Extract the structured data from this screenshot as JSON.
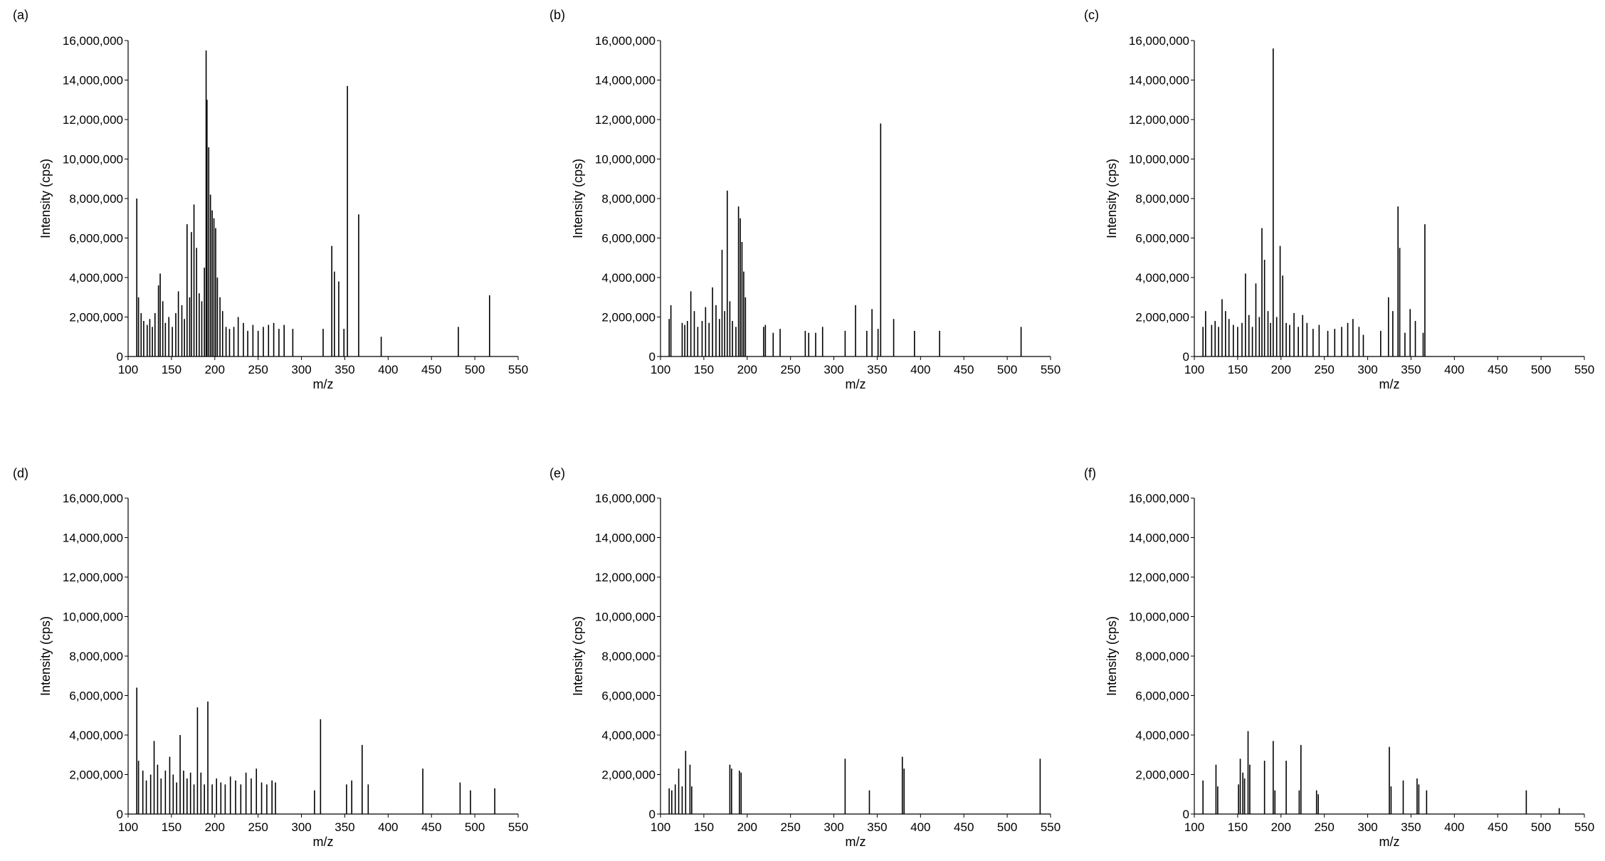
{
  "figure": {
    "panel_labels": [
      "(a)",
      "(b)",
      "(c)",
      "(d)",
      "(e)",
      "(f)"
    ]
  },
  "colors": {
    "stroke": "#000000",
    "background": "#ffffff"
  },
  "chart_data": [
    {
      "panel": "(a)",
      "type": "bar",
      "xlabel": "m/z",
      "ylabel": "Intensity (cps)",
      "xlim": [
        100,
        550
      ],
      "ylim": [
        0,
        16000000
      ],
      "xticks": [
        100,
        150,
        200,
        250,
        300,
        350,
        400,
        450,
        500,
        550
      ],
      "yticks": [
        0,
        2000000,
        4000000,
        6000000,
        8000000,
        10000000,
        12000000,
        14000000,
        16000000
      ],
      "ytick_labels": [
        "0",
        "2,000,000",
        "4,000,000",
        "6,000,000",
        "8,000,000",
        "10,000,000",
        "12,000,000",
        "14,000,000",
        "16,000,000"
      ],
      "grid": false,
      "peaks": {
        "x": [
          110,
          112,
          115,
          118,
          122,
          125,
          128,
          131,
          135,
          137,
          140,
          143,
          147,
          151,
          155,
          158,
          162,
          165,
          168,
          171,
          173,
          176,
          179,
          182,
          185,
          188,
          190,
          191,
          193,
          195,
          197,
          199,
          201,
          203,
          206,
          209,
          213,
          217,
          222,
          227,
          233,
          238,
          244,
          250,
          256,
          262,
          268,
          274,
          280,
          290,
          325,
          335,
          338,
          343,
          349,
          353,
          366,
          392,
          481,
          517
        ],
        "y": [
          8000000,
          3000000,
          2200000,
          1800000,
          1600000,
          1900000,
          1500000,
          2200000,
          3600000,
          4200000,
          2800000,
          1700000,
          2000000,
          1500000,
          2200000,
          3300000,
          2600000,
          1900000,
          6700000,
          3000000,
          6300000,
          7700000,
          5500000,
          3200000,
          2800000,
          4500000,
          15500000,
          13000000,
          10600000,
          8200000,
          7400000,
          7000000,
          6500000,
          4000000,
          3000000,
          2300000,
          1500000,
          1400000,
          1500000,
          2000000,
          1700000,
          1300000,
          1600000,
          1300000,
          1500000,
          1600000,
          1700000,
          1400000,
          1600000,
          1400000,
          1400000,
          5600000,
          4300000,
          3800000,
          1400000,
          13700000,
          7200000,
          1000000,
          1500000,
          3100000
        ]
      }
    },
    {
      "panel": "(b)",
      "type": "bar",
      "xlabel": "m/z",
      "ylabel": "Intensity (cps)",
      "xlim": [
        100,
        550
      ],
      "ylim": [
        0,
        16000000
      ],
      "xticks": [
        100,
        150,
        200,
        250,
        300,
        350,
        400,
        450,
        500,
        550
      ],
      "yticks": [
        0,
        2000000,
        4000000,
        6000000,
        8000000,
        10000000,
        12000000,
        14000000,
        16000000
      ],
      "ytick_labels": [
        "0",
        "2,000,000",
        "4,000,000",
        "6,000,000",
        "8,000,000",
        "10,000,000",
        "12,000,000",
        "14,000,000",
        "16,000,000"
      ],
      "grid": false,
      "peaks": {
        "x": [
          110,
          112,
          125,
          128,
          131,
          135,
          139,
          143,
          148,
          152,
          156,
          160,
          164,
          168,
          171,
          174,
          177,
          180,
          183,
          187,
          190,
          192,
          194,
          196,
          198,
          219,
          221,
          230,
          238,
          267,
          271,
          279,
          287,
          313,
          325,
          338,
          344,
          351,
          354,
          369,
          393,
          422,
          516
        ],
        "y": [
          1900000,
          2600000,
          1700000,
          1600000,
          1800000,
          3300000,
          2300000,
          1500000,
          1800000,
          2500000,
          1700000,
          3500000,
          2600000,
          1900000,
          5400000,
          2300000,
          8400000,
          2800000,
          1800000,
          1500000,
          7600000,
          7000000,
          5800000,
          4300000,
          3000000,
          1500000,
          1600000,
          1200000,
          1400000,
          1300000,
          1200000,
          1200000,
          1500000,
          1300000,
          2600000,
          1300000,
          2400000,
          1400000,
          11800000,
          1900000,
          1300000,
          1300000,
          1500000
        ]
      }
    },
    {
      "panel": "(c)",
      "type": "bar",
      "xlabel": "m/z",
      "ylabel": "Intensity (cps)",
      "xlim": [
        100,
        550
      ],
      "ylim": [
        0,
        16000000
      ],
      "xticks": [
        100,
        150,
        200,
        250,
        300,
        350,
        400,
        450,
        500,
        550
      ],
      "yticks": [
        0,
        2000000,
        4000000,
        6000000,
        8000000,
        10000000,
        12000000,
        14000000,
        16000000
      ],
      "ytick_labels": [
        "0",
        "2,000,000",
        "4,000,000",
        "6,000,000",
        "8,000,000",
        "10,000,000",
        "12,000,000",
        "14,000,000",
        "16,000,000"
      ],
      "grid": false,
      "peaks": {
        "x": [
          110,
          113,
          120,
          124,
          128,
          132,
          136,
          140,
          145,
          150,
          155,
          159,
          163,
          167,
          171,
          175,
          178,
          181,
          185,
          188,
          191,
          195,
          199,
          202,
          206,
          210,
          215,
          220,
          225,
          230,
          237,
          244,
          254,
          262,
          270,
          277,
          283,
          290,
          295,
          315,
          324,
          329,
          335,
          337,
          343,
          349,
          355,
          364,
          366
        ],
        "y": [
          1500000,
          2300000,
          1600000,
          1800000,
          1500000,
          2900000,
          2300000,
          1900000,
          1600000,
          1500000,
          1700000,
          4200000,
          2100000,
          1500000,
          3700000,
          2000000,
          6500000,
          4900000,
          2300000,
          1700000,
          15600000,
          2000000,
          5600000,
          4100000,
          1700000,
          1600000,
          2200000,
          1500000,
          2100000,
          1700000,
          1400000,
          1600000,
          1300000,
          1400000,
          1500000,
          1700000,
          1900000,
          1500000,
          1100000,
          1300000,
          3000000,
          2300000,
          7600000,
          5500000,
          1200000,
          2400000,
          1800000,
          1200000,
          6700000
        ]
      }
    },
    {
      "panel": "(d)",
      "type": "bar",
      "xlabel": "m/z",
      "ylabel": "Intensity (cps)",
      "xlim": [
        100,
        550
      ],
      "ylim": [
        0,
        16000000
      ],
      "xticks": [
        100,
        150,
        200,
        250,
        300,
        350,
        400,
        450,
        500,
        550
      ],
      "yticks": [
        0,
        2000000,
        4000000,
        6000000,
        8000000,
        10000000,
        12000000,
        14000000,
        16000000
      ],
      "ytick_labels": [
        "0",
        "2,000,000",
        "4,000,000",
        "6,000,000",
        "8,000,000",
        "10,000,000",
        "12,000,000",
        "14,000,000",
        "16,000,000"
      ],
      "grid": false,
      "peaks": {
        "x": [
          110,
          112,
          117,
          121,
          126,
          130,
          134,
          138,
          143,
          148,
          152,
          156,
          160,
          164,
          168,
          172,
          176,
          180,
          184,
          188,
          192,
          197,
          202,
          207,
          212,
          218,
          224,
          230,
          236,
          242,
          248,
          254,
          260,
          266,
          270,
          315,
          322,
          352,
          358,
          370,
          377,
          440,
          483,
          495,
          523
        ],
        "y": [
          6400000,
          2700000,
          2200000,
          1700000,
          2000000,
          3700000,
          2500000,
          1800000,
          2200000,
          2900000,
          2000000,
          1600000,
          4000000,
          2200000,
          1800000,
          2100000,
          1500000,
          5400000,
          2100000,
          1500000,
          5700000,
          1500000,
          1800000,
          1600000,
          1500000,
          1900000,
          1700000,
          1500000,
          2100000,
          1800000,
          2300000,
          1600000,
          1500000,
          1700000,
          1600000,
          1200000,
          4800000,
          1500000,
          1700000,
          3500000,
          1500000,
          2300000,
          1600000,
          1200000,
          1300000
        ]
      }
    },
    {
      "panel": "(e)",
      "type": "bar",
      "xlabel": "m/z",
      "ylabel": "Intensity (cps)",
      "xlim": [
        100,
        550
      ],
      "ylim": [
        0,
        16000000
      ],
      "xticks": [
        100,
        150,
        200,
        250,
        300,
        350,
        400,
        450,
        500,
        550
      ],
      "yticks": [
        0,
        2000000,
        4000000,
        6000000,
        8000000,
        10000000,
        12000000,
        14000000,
        16000000
      ],
      "ytick_labels": [
        "0",
        "2,000,000",
        "4,000,000",
        "6,000,000",
        "8,000,000",
        "10,000,000",
        "12,000,000",
        "14,000,000",
        "16,000,000"
      ],
      "grid": false,
      "peaks": {
        "x": [
          110,
          113,
          117,
          121,
          125,
          129,
          134,
          136,
          180,
          182,
          191,
          193,
          313,
          341,
          379,
          381,
          538
        ],
        "y": [
          1300000,
          1200000,
          1500000,
          2300000,
          1400000,
          3200000,
          2500000,
          1400000,
          2500000,
          2300000,
          2200000,
          2100000,
          2800000,
          1200000,
          2900000,
          2300000,
          2800000
        ]
      }
    },
    {
      "panel": "(f)",
      "type": "bar",
      "xlabel": "m/z",
      "ylabel": "Intensity (cps)",
      "xlim": [
        100,
        550
      ],
      "ylim": [
        0,
        16000000
      ],
      "xticks": [
        100,
        150,
        200,
        250,
        300,
        350,
        400,
        450,
        500,
        550
      ],
      "yticks": [
        0,
        2000000,
        4000000,
        6000000,
        8000000,
        10000000,
        12000000,
        14000000,
        16000000
      ],
      "ytick_labels": [
        "0",
        "2,000,000",
        "4,000,000",
        "6,000,000",
        "8,000,000",
        "10,000,000",
        "12,000,000",
        "14,000,000",
        "16,000,000"
      ],
      "grid": false,
      "peaks": {
        "x": [
          110,
          125,
          127,
          151,
          153,
          156,
          158,
          162,
          164,
          181,
          191,
          193,
          206,
          221,
          223,
          241,
          243,
          325,
          327,
          341,
          357,
          359,
          368,
          483,
          521
        ],
        "y": [
          1700000,
          2500000,
          1400000,
          1500000,
          2800000,
          2100000,
          1800000,
          4200000,
          2500000,
          2700000,
          3700000,
          1200000,
          2700000,
          1200000,
          3500000,
          1200000,
          1000000,
          3400000,
          1400000,
          1700000,
          1800000,
          1500000,
          1200000,
          1200000,
          300000
        ]
      }
    }
  ]
}
